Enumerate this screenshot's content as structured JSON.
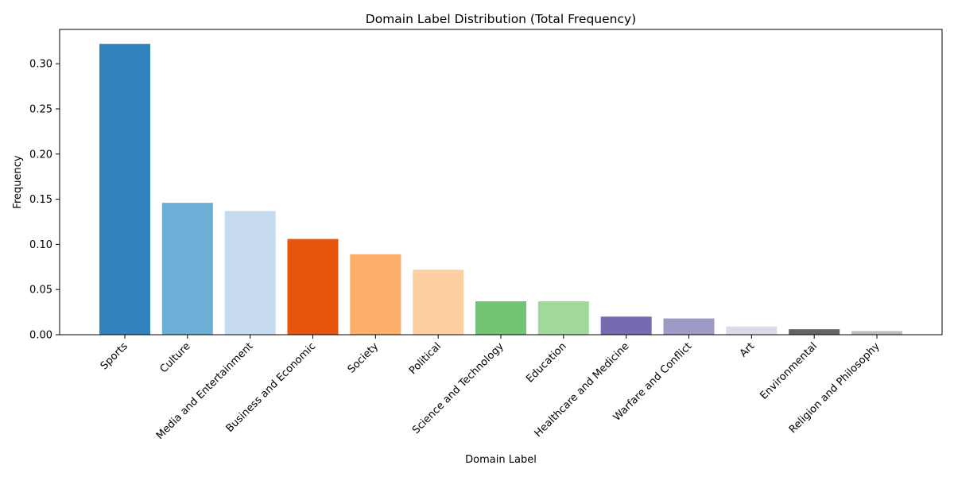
{
  "chart_data": {
    "type": "bar",
    "title": "Domain Label Distribution (Total Frequency)",
    "xlabel": "Domain Label",
    "ylabel": "Frequency",
    "ylim": [
      0,
      0.338
    ],
    "yticks": [
      "0.00",
      "0.05",
      "0.10",
      "0.15",
      "0.20",
      "0.25",
      "0.30"
    ],
    "grid": false,
    "categories": [
      "Sports",
      "Culture",
      "Media and Entertainment",
      "Business and Economic",
      "Society",
      "Political",
      "Science and Technology",
      "Education",
      "Healthcare and Medicine",
      "Warfare and Conflict",
      "Art",
      "Environmental",
      "Religion and Philosophy"
    ],
    "values": [
      0.322,
      0.146,
      0.137,
      0.106,
      0.089,
      0.072,
      0.037,
      0.037,
      0.02,
      0.018,
      0.009,
      0.006,
      0.004
    ],
    "colors": [
      "#3182bd",
      "#6baed6",
      "#c6dbef",
      "#e6550d",
      "#fdae6b",
      "#fdd0a2",
      "#74c476",
      "#a1d99b",
      "#756bb1",
      "#9e9ac8",
      "#dadaeb",
      "#636363",
      "#bdbdbd"
    ]
  }
}
